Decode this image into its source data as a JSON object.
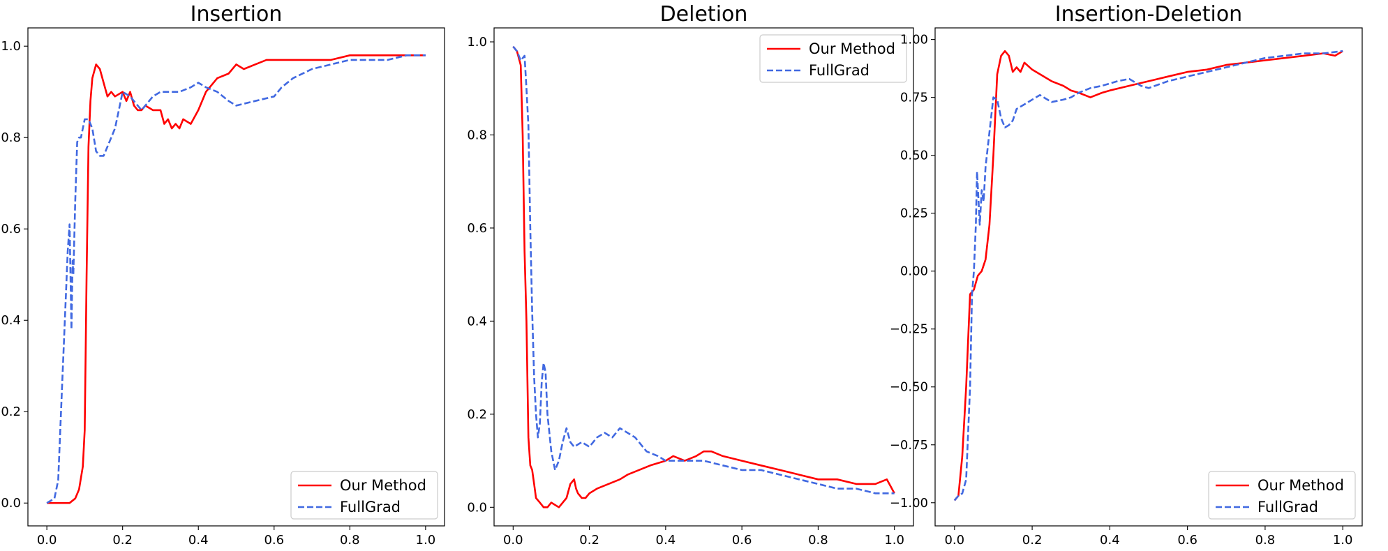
{
  "colors": {
    "our_method": "#ff0000",
    "fullgrad": "#4169e1"
  },
  "chart_data": [
    {
      "type": "line",
      "title": "Insertion",
      "xlabel": "",
      "ylabel": "",
      "xlim": [
        -0.05,
        1.05
      ],
      "ylim": [
        -0.05,
        1.04
      ],
      "xticks": [
        "0.0",
        "0.2",
        "0.4",
        "0.6",
        "0.8",
        "1.0"
      ],
      "yticks": [
        "0.0",
        "0.2",
        "0.4",
        "0.6",
        "0.8",
        "1.0"
      ],
      "legend_position": "bottom-right",
      "grid": false,
      "series": [
        {
          "name": "Our Method",
          "style": "solid",
          "color": "#ff0000",
          "x": [
            0.0,
            0.02,
            0.04,
            0.06,
            0.075,
            0.085,
            0.095,
            0.1,
            0.105,
            0.11,
            0.115,
            0.12,
            0.13,
            0.14,
            0.15,
            0.16,
            0.17,
            0.18,
            0.2,
            0.21,
            0.22,
            0.23,
            0.24,
            0.25,
            0.26,
            0.28,
            0.3,
            0.31,
            0.32,
            0.33,
            0.34,
            0.35,
            0.36,
            0.38,
            0.4,
            0.42,
            0.45,
            0.48,
            0.5,
            0.52,
            0.55,
            0.58,
            0.6,
            0.65,
            0.7,
            0.75,
            0.8,
            0.85,
            0.9,
            0.95,
            1.0
          ],
          "y": [
            0.0,
            0.0,
            0.0,
            0.0,
            0.01,
            0.03,
            0.08,
            0.16,
            0.5,
            0.78,
            0.88,
            0.93,
            0.96,
            0.95,
            0.92,
            0.89,
            0.9,
            0.89,
            0.9,
            0.88,
            0.9,
            0.87,
            0.86,
            0.86,
            0.87,
            0.86,
            0.86,
            0.83,
            0.84,
            0.82,
            0.83,
            0.82,
            0.84,
            0.83,
            0.86,
            0.9,
            0.93,
            0.94,
            0.96,
            0.95,
            0.96,
            0.97,
            0.97,
            0.97,
            0.97,
            0.97,
            0.98,
            0.98,
            0.98,
            0.98,
            0.98
          ]
        },
        {
          "name": "FullGrad",
          "style": "dashed",
          "color": "#4169e1",
          "x": [
            0.0,
            0.02,
            0.03,
            0.04,
            0.05,
            0.055,
            0.06,
            0.065,
            0.068,
            0.07,
            0.075,
            0.08,
            0.085,
            0.09,
            0.1,
            0.11,
            0.12,
            0.13,
            0.14,
            0.15,
            0.16,
            0.17,
            0.18,
            0.19,
            0.2,
            0.22,
            0.25,
            0.28,
            0.3,
            0.32,
            0.35,
            0.38,
            0.4,
            0.42,
            0.45,
            0.48,
            0.5,
            0.55,
            0.6,
            0.62,
            0.65,
            0.7,
            0.75,
            0.8,
            0.85,
            0.9,
            0.95,
            1.0
          ],
          "y": [
            0.0,
            0.01,
            0.05,
            0.25,
            0.45,
            0.55,
            0.61,
            0.38,
            0.53,
            0.5,
            0.66,
            0.79,
            0.8,
            0.8,
            0.84,
            0.84,
            0.82,
            0.77,
            0.76,
            0.76,
            0.78,
            0.8,
            0.82,
            0.86,
            0.9,
            0.89,
            0.86,
            0.89,
            0.9,
            0.9,
            0.9,
            0.91,
            0.92,
            0.91,
            0.9,
            0.88,
            0.87,
            0.88,
            0.89,
            0.91,
            0.93,
            0.95,
            0.96,
            0.97,
            0.97,
            0.97,
            0.98,
            0.98
          ]
        }
      ]
    },
    {
      "type": "line",
      "title": "Deletion",
      "xlabel": "",
      "ylabel": "",
      "xlim": [
        -0.05,
        1.05
      ],
      "ylim": [
        -0.04,
        1.03
      ],
      "xticks": [
        "0.0",
        "0.2",
        "0.4",
        "0.6",
        "0.8",
        "1.0"
      ],
      "yticks": [
        "0.0",
        "0.2",
        "0.4",
        "0.6",
        "0.8",
        "1.0"
      ],
      "legend_position": "top-right",
      "grid": false,
      "series": [
        {
          "name": "Our Method",
          "style": "solid",
          "color": "#ff0000",
          "x": [
            0.0,
            0.01,
            0.02,
            0.025,
            0.03,
            0.035,
            0.04,
            0.045,
            0.05,
            0.055,
            0.06,
            0.07,
            0.08,
            0.09,
            0.1,
            0.12,
            0.14,
            0.15,
            0.16,
            0.165,
            0.17,
            0.18,
            0.19,
            0.2,
            0.22,
            0.25,
            0.28,
            0.3,
            0.33,
            0.36,
            0.4,
            0.42,
            0.45,
            0.48,
            0.5,
            0.52,
            0.55,
            0.6,
            0.65,
            0.7,
            0.75,
            0.8,
            0.85,
            0.9,
            0.95,
            0.98,
            1.0
          ],
          "y": [
            0.99,
            0.98,
            0.95,
            0.8,
            0.55,
            0.4,
            0.15,
            0.09,
            0.08,
            0.05,
            0.02,
            0.01,
            0.0,
            0.0,
            0.01,
            0.0,
            0.02,
            0.05,
            0.06,
            0.04,
            0.03,
            0.02,
            0.02,
            0.03,
            0.04,
            0.05,
            0.06,
            0.07,
            0.08,
            0.09,
            0.1,
            0.11,
            0.1,
            0.11,
            0.12,
            0.12,
            0.11,
            0.1,
            0.09,
            0.08,
            0.07,
            0.06,
            0.06,
            0.05,
            0.05,
            0.06,
            0.03
          ]
        },
        {
          "name": "FullGrad",
          "style": "dashed",
          "color": "#4169e1",
          "x": [
            0.0,
            0.01,
            0.02,
            0.03,
            0.035,
            0.04,
            0.045,
            0.05,
            0.055,
            0.06,
            0.065,
            0.07,
            0.075,
            0.08,
            0.085,
            0.09,
            0.1,
            0.11,
            0.12,
            0.13,
            0.14,
            0.15,
            0.16,
            0.18,
            0.2,
            0.22,
            0.24,
            0.26,
            0.28,
            0.3,
            0.32,
            0.35,
            0.38,
            0.4,
            0.45,
            0.5,
            0.55,
            0.6,
            0.65,
            0.7,
            0.75,
            0.8,
            0.85,
            0.9,
            0.95,
            1.0
          ],
          "y": [
            0.99,
            0.98,
            0.96,
            0.97,
            0.9,
            0.82,
            0.6,
            0.42,
            0.28,
            0.2,
            0.15,
            0.18,
            0.27,
            0.31,
            0.29,
            0.2,
            0.12,
            0.08,
            0.1,
            0.14,
            0.17,
            0.14,
            0.13,
            0.14,
            0.13,
            0.15,
            0.16,
            0.15,
            0.17,
            0.16,
            0.15,
            0.12,
            0.11,
            0.1,
            0.1,
            0.1,
            0.09,
            0.08,
            0.08,
            0.07,
            0.06,
            0.05,
            0.04,
            0.04,
            0.03,
            0.03
          ]
        }
      ]
    },
    {
      "type": "line",
      "title": "Insertion-Deletion",
      "xlabel": "",
      "ylabel": "",
      "xlim": [
        -0.05,
        1.05
      ],
      "ylim": [
        -1.1,
        1.05
      ],
      "xticks": [
        "0.0",
        "0.2",
        "0.4",
        "0.6",
        "0.8",
        "1.0"
      ],
      "yticks": [
        "−1.00",
        "−0.75",
        "−0.50",
        "−0.25",
        "0.00",
        "0.25",
        "0.50",
        "0.75",
        "1.00"
      ],
      "legend_position": "bottom-right",
      "grid": false,
      "series": [
        {
          "name": "Our Method",
          "style": "solid",
          "color": "#ff0000",
          "x": [
            0.0,
            0.01,
            0.02,
            0.03,
            0.035,
            0.04,
            0.045,
            0.05,
            0.055,
            0.06,
            0.07,
            0.08,
            0.09,
            0.1,
            0.11,
            0.12,
            0.13,
            0.14,
            0.15,
            0.16,
            0.17,
            0.18,
            0.2,
            0.22,
            0.25,
            0.28,
            0.3,
            0.32,
            0.35,
            0.38,
            0.4,
            0.45,
            0.5,
            0.55,
            0.6,
            0.65,
            0.7,
            0.75,
            0.8,
            0.85,
            0.9,
            0.95,
            0.98,
            1.0
          ],
          "y": [
            -0.99,
            -0.97,
            -0.8,
            -0.5,
            -0.3,
            -0.1,
            -0.09,
            -0.08,
            -0.05,
            -0.02,
            0.0,
            0.05,
            0.2,
            0.5,
            0.85,
            0.93,
            0.95,
            0.93,
            0.86,
            0.88,
            0.86,
            0.9,
            0.87,
            0.85,
            0.82,
            0.8,
            0.78,
            0.77,
            0.75,
            0.77,
            0.78,
            0.8,
            0.82,
            0.84,
            0.86,
            0.87,
            0.89,
            0.9,
            0.91,
            0.92,
            0.93,
            0.94,
            0.93,
            0.95
          ]
        },
        {
          "name": "FullGrad",
          "style": "dashed",
          "color": "#4169e1",
          "x": [
            0.0,
            0.01,
            0.02,
            0.03,
            0.04,
            0.045,
            0.05,
            0.055,
            0.058,
            0.062,
            0.065,
            0.07,
            0.075,
            0.08,
            0.09,
            0.1,
            0.11,
            0.12,
            0.13,
            0.14,
            0.15,
            0.16,
            0.18,
            0.2,
            0.22,
            0.25,
            0.28,
            0.3,
            0.32,
            0.35,
            0.38,
            0.4,
            0.42,
            0.45,
            0.48,
            0.5,
            0.55,
            0.6,
            0.65,
            0.7,
            0.75,
            0.8,
            0.85,
            0.9,
            0.95,
            1.0
          ],
          "y": [
            -0.99,
            -0.97,
            -0.96,
            -0.9,
            -0.5,
            -0.1,
            0.0,
            0.2,
            0.43,
            0.3,
            0.2,
            0.35,
            0.3,
            0.45,
            0.6,
            0.75,
            0.74,
            0.66,
            0.62,
            0.63,
            0.65,
            0.7,
            0.72,
            0.74,
            0.76,
            0.73,
            0.74,
            0.75,
            0.77,
            0.79,
            0.8,
            0.81,
            0.82,
            0.83,
            0.8,
            0.79,
            0.82,
            0.84,
            0.86,
            0.88,
            0.9,
            0.92,
            0.93,
            0.94,
            0.94,
            0.95
          ]
        }
      ]
    }
  ]
}
